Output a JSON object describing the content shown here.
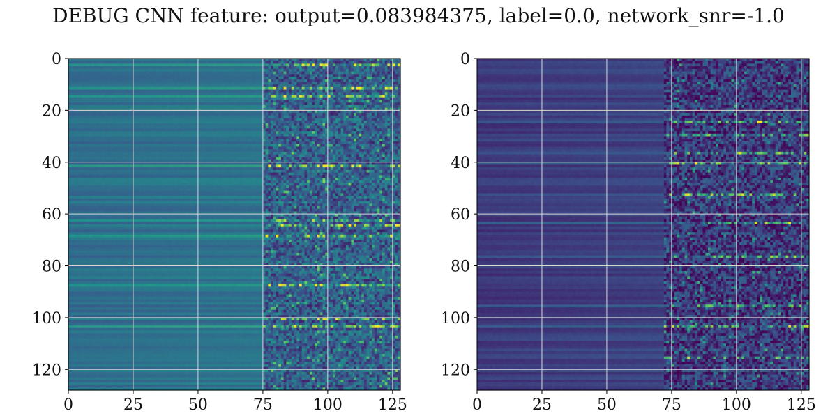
{
  "figure": {
    "title": "DEBUG CNN feature: output=0.083984375, label=0.0, network_snr=-1.0"
  },
  "chart_data": [
    {
      "type": "heatmap",
      "title": "",
      "xlabel": "",
      "ylabel": "",
      "rows": 128,
      "cols": 128,
      "xlim": [
        0,
        128
      ],
      "ylim": [
        128,
        0
      ],
      "xticks": [
        0,
        25,
        50,
        75,
        100,
        125
      ],
      "yticks": [
        0,
        20,
        40,
        60,
        80,
        100,
        120
      ],
      "grid": true,
      "colormap": "viridis",
      "colormap_stops": [
        "#440154",
        "#3b528b",
        "#21908d",
        "#5dc963",
        "#fde725"
      ],
      "description_values": {
        "flat_region_cols": [
          0,
          75
        ],
        "noisy_region_cols": [
          75,
          128
        ],
        "bright_rows": [
          2,
          11,
          14,
          41,
          62,
          64,
          68,
          87,
          100,
          103
        ]
      }
    },
    {
      "type": "heatmap",
      "title": "",
      "xlabel": "",
      "ylabel": "",
      "rows": 128,
      "cols": 128,
      "xlim": [
        0,
        128
      ],
      "ylim": [
        128,
        0
      ],
      "xticks": [
        0,
        25,
        50,
        75,
        100,
        125
      ],
      "yticks": [
        0,
        20,
        40,
        60,
        80,
        100,
        120
      ],
      "grid": true,
      "colormap": "viridis",
      "colormap_stops": [
        "#440154",
        "#3b528b",
        "#21908d",
        "#5dc963",
        "#fde725"
      ],
      "description_values": {
        "flat_region_cols": [
          0,
          72
        ],
        "noisy_region_cols": [
          72,
          128
        ],
        "bright_rows": [
          24,
          29,
          36,
          40,
          52,
          63,
          76,
          95,
          103,
          115
        ]
      }
    }
  ]
}
